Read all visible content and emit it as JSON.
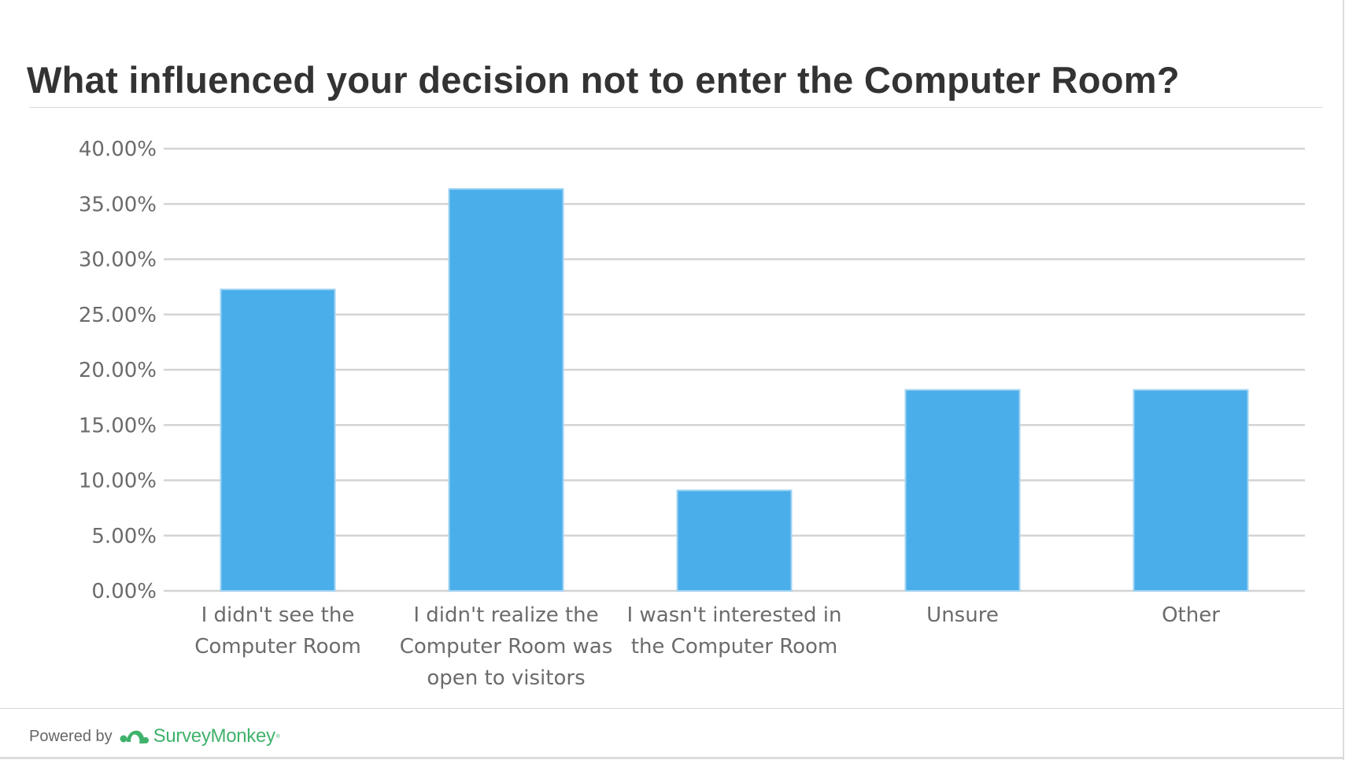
{
  "chart_data": {
    "type": "bar",
    "title": "What influenced your decision not to enter the Computer Room?",
    "categories": [
      [
        "I didn't see the",
        "Computer Room"
      ],
      [
        "I didn't realize the",
        "Computer Room was",
        "open to visitors"
      ],
      [
        "I wasn't interested in",
        "the Computer Room"
      ],
      [
        "Unsure"
      ],
      [
        "Other"
      ]
    ],
    "values": [
      27.27,
      36.36,
      9.09,
      18.18,
      18.18
    ],
    "ylim": [
      0,
      40
    ],
    "yticks": [
      0,
      5,
      10,
      15,
      20,
      25,
      30,
      35,
      40
    ],
    "ytick_labels": [
      "0.00%",
      "5.00%",
      "10.00%",
      "15.00%",
      "20.00%",
      "25.00%",
      "30.00%",
      "35.00%",
      "40.00%"
    ],
    "grid": true,
    "colors": {
      "bar": "#4aaeea",
      "bar_edge": "#9fd3f2",
      "grid": "#d4d4d4"
    }
  },
  "footer": {
    "powered_by": "Powered by",
    "brand": "SurveyMonkey",
    "brand_mark": "®",
    "brand_icon": "surveymonkey-logo-icon"
  }
}
